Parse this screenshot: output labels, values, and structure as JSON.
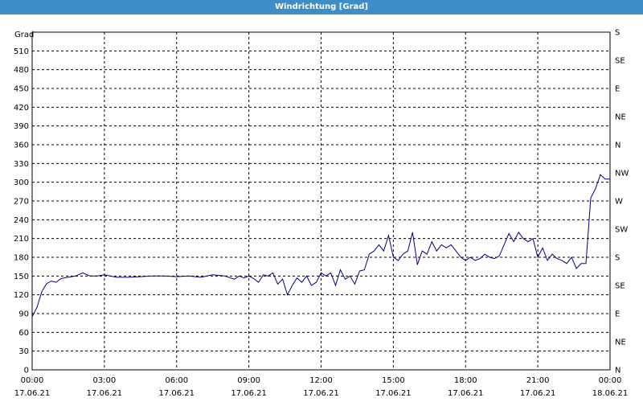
{
  "title": "Windrichtung [Grad]",
  "chart_data": {
    "type": "line",
    "ylabel": "Grad",
    "ylim": [
      0,
      540
    ],
    "y_ticks": [
      0,
      30,
      60,
      90,
      120,
      150,
      180,
      210,
      240,
      270,
      300,
      330,
      360,
      390,
      420,
      450,
      480,
      510
    ],
    "xlim": [
      0,
      24
    ],
    "x_ticks": [
      {
        "time": "00:00",
        "date": "17.06.21"
      },
      {
        "time": "03:00",
        "date": "17.06.21"
      },
      {
        "time": "06:00",
        "date": "17.06.21"
      },
      {
        "time": "09:00",
        "date": "17.06.21"
      },
      {
        "time": "12:00",
        "date": "17.06.21"
      },
      {
        "time": "15:00",
        "date": "17.06.21"
      },
      {
        "time": "18:00",
        "date": "17.06.21"
      },
      {
        "time": "21:00",
        "date": "17.06.21"
      },
      {
        "time": "00:00",
        "date": "18.06.21"
      }
    ],
    "right_axis_labels": [
      "N",
      "NE",
      "E",
      "SE",
      "S",
      "SW",
      "W",
      "NW",
      "N",
      "NE",
      "E",
      "SE",
      "S"
    ],
    "grid": true,
    "series": [
      {
        "color": "#000080",
        "x": [
          0,
          0.2,
          0.4,
          0.6,
          0.8,
          1.0,
          1.2,
          1.5,
          1.8,
          2.1,
          2.4,
          2.7,
          3.0,
          3.5,
          4.0,
          4.5,
          5.0,
          5.5,
          6.0,
          6.5,
          7.0,
          7.5,
          8.0,
          8.4,
          8.6,
          8.8,
          9.0,
          9.2,
          9.4,
          9.6,
          9.8,
          10.0,
          10.2,
          10.4,
          10.6,
          10.8,
          11.0,
          11.2,
          11.4,
          11.6,
          11.8,
          12.0,
          12.2,
          12.4,
          12.6,
          12.8,
          13.0,
          13.2,
          13.4,
          13.6,
          13.8,
          14.0,
          14.2,
          14.4,
          14.6,
          14.8,
          15.0,
          15.2,
          15.4,
          15.6,
          15.8,
          16.0,
          16.2,
          16.4,
          16.6,
          16.8,
          17.0,
          17.2,
          17.4,
          17.6,
          17.8,
          18.0,
          18.2,
          18.4,
          18.6,
          18.8,
          19.0,
          19.2,
          19.4,
          19.6,
          19.8,
          20.0,
          20.2,
          20.4,
          20.6,
          20.8,
          21.0,
          21.2,
          21.4,
          21.6,
          21.8,
          22.0,
          22.2,
          22.4,
          22.6,
          22.8,
          23.0,
          23.2,
          23.4,
          23.6,
          23.8,
          24.0
        ],
        "y": [
          85,
          100,
          125,
          138,
          142,
          140,
          146,
          148,
          150,
          155,
          150,
          150,
          152,
          148,
          148,
          149,
          150,
          150,
          149,
          150,
          148,
          152,
          150,
          145,
          150,
          147,
          150,
          146,
          140,
          152,
          150,
          155,
          137,
          145,
          120,
          135,
          147,
          140,
          150,
          135,
          140,
          155,
          150,
          155,
          135,
          160,
          145,
          150,
          137,
          158,
          160,
          185,
          190,
          200,
          190,
          215,
          180,
          175,
          185,
          190,
          220,
          168,
          190,
          185,
          205,
          190,
          200,
          195,
          200,
          190,
          180,
          175,
          180,
          175,
          178,
          185,
          180,
          178,
          182,
          200,
          218,
          205,
          220,
          210,
          205,
          210,
          180,
          195,
          175,
          185,
          178,
          175,
          170,
          180,
          162,
          170,
          170,
          275,
          290,
          312,
          305,
          305
        ]
      }
    ]
  }
}
